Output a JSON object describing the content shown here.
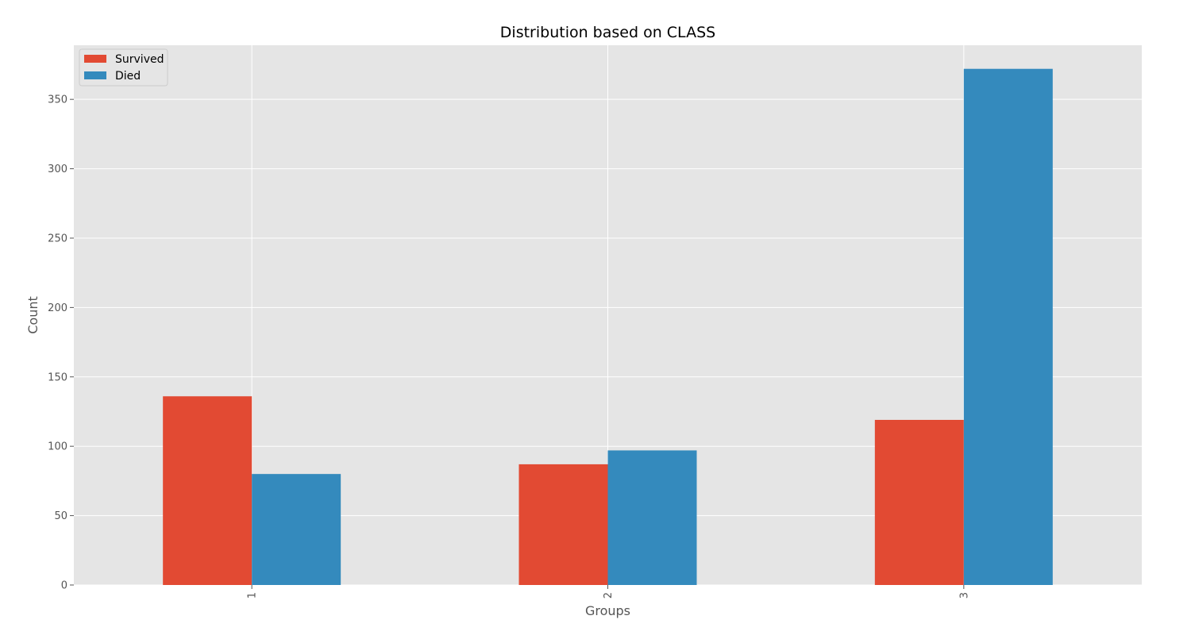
{
  "chart_data": {
    "type": "bar",
    "title": "Distribution based on CLASS",
    "xlabel": "Groups",
    "ylabel": "Count",
    "categories": [
      "1",
      "2",
      "3"
    ],
    "series": [
      {
        "name": "Survived",
        "values": [
          136,
          87,
          119
        ],
        "color": "#e24a33"
      },
      {
        "name": "Died",
        "values": [
          80,
          97,
          372
        ],
        "color": "#348abd"
      }
    ],
    "ylim": [
      0,
      389
    ],
    "yticks": [
      0,
      50,
      100,
      150,
      200,
      250,
      300,
      350
    ],
    "grid": true,
    "legend_position": "top-left",
    "x_tick_rotation": "vertical",
    "colors": {
      "plot_background": "#e5e5e5",
      "grid": "#ffffff",
      "text": "#555555"
    }
  }
}
